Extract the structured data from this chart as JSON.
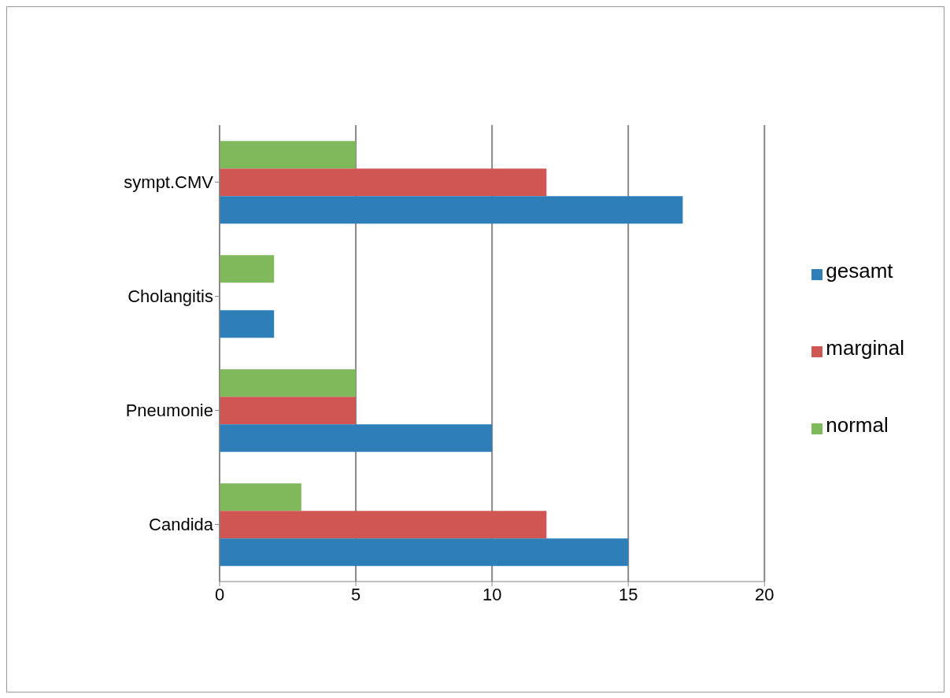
{
  "chart_data": {
    "type": "bar",
    "orientation": "horizontal",
    "categories": [
      "sympt.CMV",
      "Cholangitis",
      "Pneumonie",
      "Candida"
    ],
    "series": [
      {
        "name": "normal",
        "color": "#7fb95b",
        "values": [
          5,
          2,
          5,
          3
        ]
      },
      {
        "name": "marginal",
        "color": "#d05654",
        "values": [
          12,
          0,
          5,
          12
        ]
      },
      {
        "name": "gesamt",
        "color": "#2e7eb8",
        "values": [
          17,
          2,
          10,
          15
        ]
      }
    ],
    "xlim": [
      0,
      20
    ],
    "xticks": [
      0,
      5,
      10,
      15,
      20
    ],
    "grid": "x",
    "legend": "right"
  }
}
